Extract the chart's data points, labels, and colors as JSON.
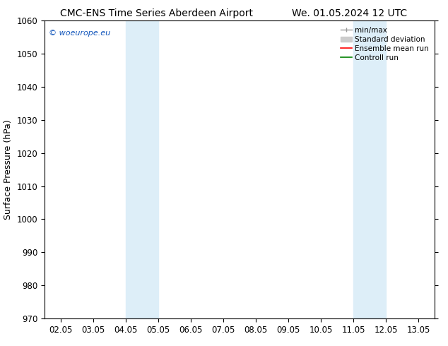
{
  "title_left": "CMC-ENS Time Series Aberdeen Airport",
  "title_right": "We. 01.05.2024 12 UTC",
  "ylabel": "Surface Pressure (hPa)",
  "ylim": [
    970,
    1060
  ],
  "yticks": [
    970,
    980,
    990,
    1000,
    1010,
    1020,
    1030,
    1040,
    1050,
    1060
  ],
  "xtick_labels": [
    "02.05",
    "03.05",
    "04.05",
    "05.05",
    "06.05",
    "07.05",
    "08.05",
    "09.05",
    "10.05",
    "11.05",
    "12.05",
    "13.05"
  ],
  "xtick_positions": [
    0,
    1,
    2,
    3,
    4,
    5,
    6,
    7,
    8,
    9,
    10,
    11
  ],
  "xlim": [
    -0.5,
    11.5
  ],
  "shaded_bands": [
    {
      "x_start": 2.0,
      "x_end": 3.0,
      "color": "#ddeef8"
    },
    {
      "x_start": 9.0,
      "x_end": 10.0,
      "color": "#ddeef8"
    }
  ],
  "watermark_text": "© woeurope.eu",
  "watermark_color": "#1155bb",
  "bg_color": "#ffffff",
  "title_fontsize": 10,
  "axis_label_fontsize": 9,
  "tick_fontsize": 8.5,
  "legend_fontsize": 7.5
}
